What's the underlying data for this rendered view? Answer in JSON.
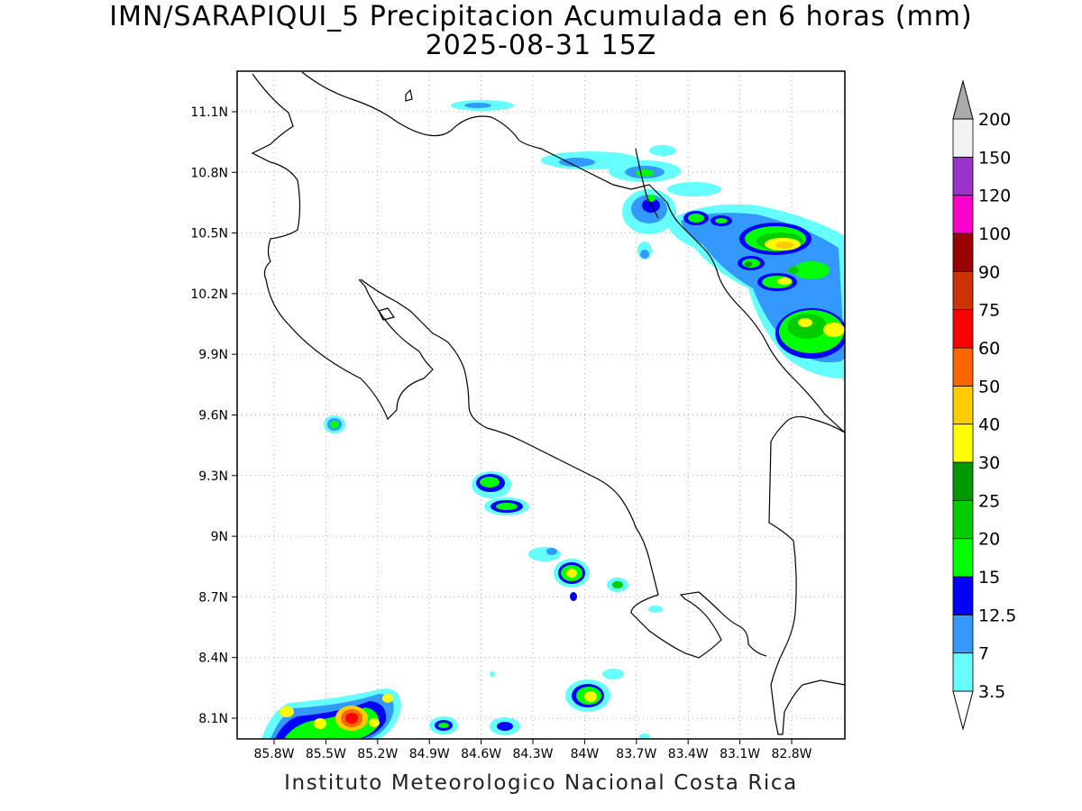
{
  "header": {
    "title_line1": "IMN/SARAPIQUI_5 Precipitacion Acumulada en 6 horas (mm)",
    "title_line2": "2025-08-31 15Z"
  },
  "footer": {
    "text": "Instituto Meteorologico Nacional Costa Rica"
  },
  "map": {
    "lat_ticks": [
      {
        "lat": 11.1,
        "label": "11.1N"
      },
      {
        "lat": 10.8,
        "label": "10.8N"
      },
      {
        "lat": 10.5,
        "label": "10.5N"
      },
      {
        "lat": 10.2,
        "label": "10.2N"
      },
      {
        "lat": 9.9,
        "label": "9.9N"
      },
      {
        "lat": 9.6,
        "label": "9.6N"
      },
      {
        "lat": 9.3,
        "label": "9.3N"
      },
      {
        "lat": 9.0,
        "label": "9N"
      },
      {
        "lat": 8.7,
        "label": "8.7N"
      },
      {
        "lat": 8.4,
        "label": "8.4N"
      },
      {
        "lat": 8.1,
        "label": "8.1N"
      }
    ],
    "lon_ticks": [
      {
        "lon": -85.8,
        "label": "85.8W"
      },
      {
        "lon": -85.5,
        "label": "85.5W"
      },
      {
        "lon": -85.2,
        "label": "85.2W"
      },
      {
        "lon": -84.9,
        "label": "84.9W"
      },
      {
        "lon": -84.6,
        "label": "84.6W"
      },
      {
        "lon": -84.3,
        "label": "84.3W"
      },
      {
        "lon": -84.0,
        "label": "84W"
      },
      {
        "lon": -83.7,
        "label": "83.7W"
      },
      {
        "lon": -83.4,
        "label": "83.4W"
      },
      {
        "lon": -83.1,
        "label": "83.1W"
      },
      {
        "lon": -82.8,
        "label": "82.8W"
      }
    ],
    "gridlines": true
  },
  "colorbar": {
    "levels": [
      "3.5",
      "7",
      "12.5",
      "15",
      "20",
      "25",
      "30",
      "40",
      "50",
      "60",
      "75",
      "90",
      "100",
      "120",
      "150",
      "200"
    ],
    "colors": [
      "#66ffff",
      "#3399ff",
      "#0000ff",
      "#00ff00",
      "#00cc00",
      "#009900",
      "#ffff00",
      "#ffcc00",
      "#ff6600",
      "#ff0000",
      "#cc3300",
      "#990000",
      "#ff00cc",
      "#9933cc",
      "#f2f2f2",
      "#aaaaaa"
    ]
  }
}
